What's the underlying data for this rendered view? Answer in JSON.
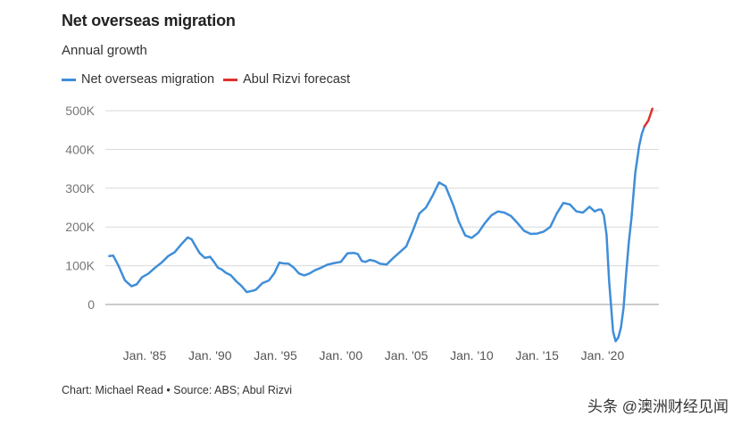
{
  "header": {
    "title": "Net overseas migration",
    "subtitle": "Annual growth"
  },
  "colors": {
    "series_blue": "#3f8ed8",
    "series_red": "#e0312f",
    "grid": "#d8d8d8",
    "axis_text": "#777777"
  },
  "footer": {
    "credit": "Chart: Michael Read • Source: ABS; Abul Rizvi",
    "watermark": "头条 @澳洲财经见闻"
  },
  "chart_data": {
    "type": "line",
    "title": "Net overseas migration",
    "subtitle": "Annual growth",
    "xlabel": "",
    "ylabel": "",
    "xlim": [
      1982.0,
      2024.3
    ],
    "ylim": [
      -100000,
      500000
    ],
    "grid": true,
    "legend_position": "top-left",
    "y_ticks": [
      {
        "value": 0,
        "label": "0"
      },
      {
        "value": 100000,
        "label": "100K"
      },
      {
        "value": 200000,
        "label": "200K"
      },
      {
        "value": 300000,
        "label": "300K"
      },
      {
        "value": 400000,
        "label": "400K"
      },
      {
        "value": 500000,
        "label": "500K"
      }
    ],
    "x_ticks": [
      {
        "value": 1985,
        "label": "Jan. '85"
      },
      {
        "value": 1990,
        "label": "Jan. '90"
      },
      {
        "value": 1995,
        "label": "Jan. '95"
      },
      {
        "value": 2000,
        "label": "Jan. '00"
      },
      {
        "value": 2005,
        "label": "Jan. '05"
      },
      {
        "value": 2010,
        "label": "Jan. '10"
      },
      {
        "value": 2015,
        "label": "Jan. '15"
      },
      {
        "value": 2020,
        "label": "Jan. '20"
      }
    ],
    "series": [
      {
        "name": "Net overseas migration",
        "color": "#3f8ed8",
        "x": [
          1982.3,
          1982.6,
          1983.0,
          1983.5,
          1984.0,
          1984.4,
          1984.8,
          1985.3,
          1985.8,
          1986.3,
          1986.8,
          1987.3,
          1987.8,
          1988.3,
          1988.6,
          1988.9,
          1989.2,
          1989.6,
          1990.0,
          1990.3,
          1990.6,
          1990.9,
          1991.2,
          1991.6,
          1992.0,
          1992.4,
          1992.8,
          1993.2,
          1993.5,
          1994.0,
          1994.5,
          1994.9,
          1995.3,
          1995.6,
          1996.0,
          1996.4,
          1996.8,
          1997.2,
          1997.6,
          1998.0,
          1998.5,
          1999.0,
          1999.5,
          2000.0,
          2000.5,
          2001.0,
          2001.3,
          2001.6,
          2001.9,
          2002.2,
          2002.6,
          2003.0,
          2003.5,
          2004.0,
          2004.5,
          2005.0,
          2005.5,
          2006.0,
          2006.5,
          2007.0,
          2007.5,
          2008.0,
          2008.3,
          2008.6,
          2009.0,
          2009.5,
          2010.0,
          2010.5,
          2011.0,
          2011.5,
          2012.0,
          2012.5,
          2013.0,
          2013.5,
          2014.0,
          2014.5,
          2015.0,
          2015.5,
          2016.0,
          2016.5,
          2017.0,
          2017.5,
          2018.0,
          2018.5,
          2019.0,
          2019.4,
          2019.7,
          2019.9,
          2020.1,
          2020.3,
          2020.5,
          2020.8,
          2021.0,
          2021.2,
          2021.4,
          2021.6,
          2021.8,
          2022.0,
          2022.2,
          2022.5,
          2022.8,
          2023.0,
          2023.2
        ],
        "y": [
          125000,
          126000,
          100000,
          62000,
          47000,
          52000,
          70000,
          80000,
          95000,
          108000,
          125000,
          135000,
          155000,
          173000,
          168000,
          150000,
          133000,
          120000,
          123000,
          110000,
          95000,
          90000,
          82000,
          75000,
          60000,
          48000,
          32000,
          35000,
          38000,
          55000,
          62000,
          80000,
          108000,
          106000,
          105000,
          95000,
          80000,
          75000,
          80000,
          88000,
          95000,
          103000,
          107000,
          110000,
          132000,
          133000,
          130000,
          112000,
          110000,
          115000,
          112000,
          105000,
          103000,
          120000,
          135000,
          150000,
          190000,
          235000,
          250000,
          280000,
          315000,
          305000,
          280000,
          255000,
          215000,
          178000,
          172000,
          185000,
          210000,
          230000,
          240000,
          237000,
          228000,
          210000,
          190000,
          182000,
          183000,
          188000,
          200000,
          235000,
          262000,
          258000,
          240000,
          237000,
          252000,
          240000,
          245000,
          245000,
          230000,
          180000,
          60000,
          -70000,
          -95000,
          -85000,
          -60000,
          -10000,
          80000,
          160000,
          220000,
          340000,
          410000,
          440000,
          460000
        ]
      },
      {
        "name": "Abul Rizvi forecast",
        "color": "#e0312f",
        "x": [
          2023.2,
          2023.5,
          2023.8
        ],
        "y": [
          460000,
          475000,
          505000
        ]
      }
    ]
  }
}
